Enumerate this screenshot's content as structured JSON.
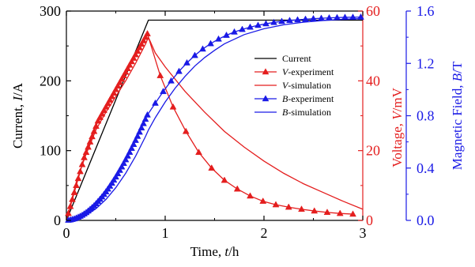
{
  "chart_data": {
    "type": "line",
    "title": "",
    "xlabel": {
      "text": "Time, ",
      "var": "t",
      "unit": "/h"
    },
    "x_axis": {
      "range": [
        0,
        3
      ],
      "ticks": [
        "0",
        "1",
        "2",
        "3"
      ]
    },
    "y_axes": {
      "left": {
        "label": {
          "text": "Current, ",
          "var": "I",
          "unit": "/A"
        },
        "range": [
          0,
          300
        ],
        "ticks": [
          "0",
          "100",
          "200",
          "300"
        ],
        "color": "#000000"
      },
      "right1": {
        "label": {
          "text": "Voltage, ",
          "var": "V",
          "unit": "/mV"
        },
        "range": [
          0,
          60
        ],
        "ticks": [
          "0",
          "20",
          "40",
          "60"
        ],
        "color": "#e41e1e"
      },
      "right2": {
        "label": {
          "text": "Magnetic Field, ",
          "var": "B",
          "unit": "/T"
        },
        "range": [
          0,
          1.6
        ],
        "ticks": [
          "0.0",
          "0.4",
          "0.8",
          "1.2",
          "1.6"
        ],
        "color": "#1a1ae6"
      }
    },
    "legend": {
      "placement": "right-middle",
      "entries": [
        {
          "var": "",
          "text": "Current",
          "color": "#000000",
          "marker": "none"
        },
        {
          "var": "V",
          "text": "-experiment",
          "color": "#e41e1e",
          "marker": "triangle"
        },
        {
          "var": "V",
          "text": "-simulation",
          "color": "#e41e1e",
          "marker": "none"
        },
        {
          "var": "B",
          "text": "-experiment",
          "color": "#1a1ae6",
          "marker": "triangle"
        },
        {
          "var": "B",
          "text": "-simulation",
          "color": "#1a1ae6",
          "marker": "none"
        }
      ]
    },
    "series": [
      {
        "name": "Current",
        "axis": "left",
        "color": "#000000",
        "marker": "none",
        "x": [
          0,
          0.83,
          3.0
        ],
        "y": [
          0,
          287,
          287
        ]
      },
      {
        "name": "V-experiment",
        "axis": "right1",
        "color": "#e41e1e",
        "marker": "triangle",
        "x": [
          0.02,
          0.04,
          0.06,
          0.08,
          0.1,
          0.12,
          0.14,
          0.16,
          0.18,
          0.2,
          0.22,
          0.24,
          0.26,
          0.28,
          0.3,
          0.32,
          0.34,
          0.36,
          0.38,
          0.4,
          0.42,
          0.44,
          0.46,
          0.48,
          0.5,
          0.52,
          0.54,
          0.56,
          0.58,
          0.6,
          0.62,
          0.64,
          0.66,
          0.68,
          0.7,
          0.72,
          0.74,
          0.76,
          0.78,
          0.8,
          0.82,
          0.95,
          1.08,
          1.21,
          1.34,
          1.47,
          1.6,
          1.73,
          1.86,
          1.99,
          2.12,
          2.25,
          2.38,
          2.51,
          2.64,
          2.77,
          2.9
        ],
        "y": [
          2,
          4,
          6,
          8,
          10,
          12,
          14,
          16,
          18,
          19.5,
          21,
          22.5,
          24,
          25.5,
          27,
          28.5,
          29.5,
          30.5,
          31.5,
          32.5,
          33.5,
          34.5,
          35.5,
          36.5,
          37.5,
          38.5,
          39.5,
          40.5,
          41.5,
          42.5,
          43.5,
          44.5,
          45.5,
          46.5,
          47.5,
          48.5,
          49.5,
          50.5,
          51.5,
          52.5,
          53.5,
          41.5,
          32.5,
          25.5,
          19.5,
          15,
          11.5,
          9,
          7,
          5.5,
          4.5,
          3.8,
          3.2,
          2.7,
          2.3,
          2.0,
          1.8
        ]
      },
      {
        "name": "V-simulation",
        "axis": "right1",
        "color": "#e41e1e",
        "marker": "none",
        "x": [
          0,
          0.1,
          0.2,
          0.3,
          0.4,
          0.5,
          0.6,
          0.7,
          0.8,
          0.83,
          0.9,
          1.0,
          1.1,
          1.2,
          1.4,
          1.6,
          1.8,
          2.0,
          2.2,
          2.4,
          2.6,
          2.8,
          3.0
        ],
        "y": [
          0,
          11,
          19,
          26,
          31,
          35.5,
          40,
          45,
          50.5,
          52.5,
          48,
          44,
          40.5,
          37,
          31,
          25.5,
          21,
          17,
          13.5,
          10.5,
          8,
          5.5,
          3.2
        ]
      },
      {
        "name": "B-experiment",
        "axis": "right2",
        "color": "#1a1ae6",
        "marker": "triangle",
        "x": [
          0.02,
          0.04,
          0.06,
          0.08,
          0.1,
          0.12,
          0.14,
          0.16,
          0.18,
          0.2,
          0.22,
          0.24,
          0.26,
          0.28,
          0.3,
          0.32,
          0.34,
          0.36,
          0.38,
          0.4,
          0.42,
          0.44,
          0.46,
          0.48,
          0.5,
          0.52,
          0.54,
          0.56,
          0.58,
          0.6,
          0.62,
          0.64,
          0.66,
          0.68,
          0.7,
          0.72,
          0.74,
          0.76,
          0.78,
          0.8,
          0.82,
          0.9,
          0.98,
          1.06,
          1.14,
          1.22,
          1.3,
          1.38,
          1.46,
          1.54,
          1.62,
          1.7,
          1.78,
          1.86,
          1.94,
          2.02,
          2.1,
          2.18,
          2.26,
          2.34,
          2.42,
          2.5,
          2.58,
          2.66,
          2.74,
          2.82,
          2.9,
          2.98
        ],
        "y": [
          0.002,
          0.004,
          0.008,
          0.012,
          0.018,
          0.025,
          0.032,
          0.04,
          0.05,
          0.06,
          0.072,
          0.085,
          0.098,
          0.112,
          0.128,
          0.145,
          0.162,
          0.18,
          0.199,
          0.219,
          0.24,
          0.262,
          0.285,
          0.308,
          0.332,
          0.357,
          0.383,
          0.409,
          0.436,
          0.464,
          0.492,
          0.521,
          0.551,
          0.581,
          0.612,
          0.643,
          0.675,
          0.707,
          0.74,
          0.773,
          0.806,
          0.896,
          0.985,
          1.066,
          1.139,
          1.204,
          1.261,
          1.31,
          1.351,
          1.386,
          1.415,
          1.44,
          1.46,
          1.477,
          1.491,
          1.503,
          1.513,
          1.521,
          1.528,
          1.533,
          1.538,
          1.542,
          1.545,
          1.548,
          1.55,
          1.552,
          1.553,
          1.554
        ]
      },
      {
        "name": "B-simulation",
        "axis": "right2",
        "color": "#1a1ae6",
        "marker": "none",
        "x": [
          0,
          0.1,
          0.2,
          0.3,
          0.4,
          0.5,
          0.6,
          0.7,
          0.8,
          0.83,
          0.9,
          1.0,
          1.1,
          1.2,
          1.3,
          1.4,
          1.5,
          1.6,
          1.8,
          2.0,
          2.2,
          2.4,
          2.6,
          2.8,
          3.0
        ],
        "y": [
          0,
          0.01,
          0.04,
          0.09,
          0.16,
          0.25,
          0.36,
          0.49,
          0.64,
          0.69,
          0.785,
          0.905,
          1.01,
          1.1,
          1.18,
          1.245,
          1.3,
          1.35,
          1.42,
          1.465,
          1.495,
          1.515,
          1.528,
          1.537,
          1.543
        ]
      }
    ]
  }
}
